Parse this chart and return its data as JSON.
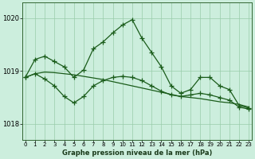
{
  "title": "Graphe pression niveau de la mer (hPa)",
  "bg_color": "#cceedd",
  "grid_color": "#99ccaa",
  "line_color": "#1a5c1a",
  "x_labels": [
    "0",
    "1",
    "2",
    "3",
    "4",
    "5",
    "6",
    "7",
    "8",
    "9",
    "10",
    "11",
    "12",
    "13",
    "14",
    "15",
    "16",
    "17",
    "18",
    "19",
    "20",
    "21",
    "22",
    "23"
  ],
  "yticks": [
    1018,
    1019,
    1020
  ],
  "ylim": [
    1017.7,
    1020.3
  ],
  "xlim": [
    -0.3,
    23.3
  ],
  "line_smooth": [
    1018.88,
    1018.95,
    1018.98,
    1018.97,
    1018.95,
    1018.93,
    1018.9,
    1018.87,
    1018.84,
    1018.8,
    1018.76,
    1018.72,
    1018.68,
    1018.64,
    1018.6,
    1018.56,
    1018.52,
    1018.5,
    1018.48,
    1018.45,
    1018.42,
    1018.4,
    1018.37,
    1018.32
  ],
  "line_upper": [
    1018.88,
    1019.22,
    1019.28,
    1019.18,
    1019.08,
    1018.88,
    1019.02,
    1019.42,
    1019.55,
    1019.72,
    1019.87,
    1019.97,
    1019.62,
    1019.35,
    1019.08,
    1018.72,
    1018.58,
    1018.65,
    1018.88,
    1018.88,
    1018.72,
    1018.65,
    1018.35,
    1018.3
  ],
  "line_lower": [
    1018.88,
    1018.95,
    1018.85,
    1018.72,
    1018.52,
    1018.4,
    1018.52,
    1018.72,
    1018.82,
    1018.88,
    1018.9,
    1018.88,
    1018.82,
    1018.72,
    1018.62,
    1018.55,
    1018.52,
    1018.55,
    1018.58,
    1018.55,
    1018.5,
    1018.45,
    1018.32,
    1018.28
  ]
}
